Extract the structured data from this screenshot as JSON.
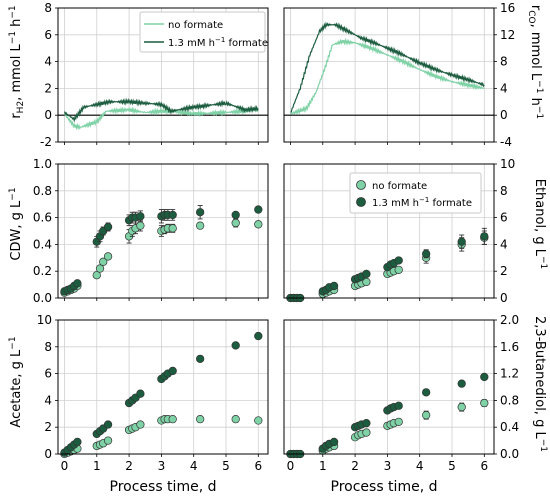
{
  "colors": {
    "no_formate": "#7fd1a6",
    "formate": "#1c5c3f",
    "grid": "#d0d0d0"
  },
  "x_axis": {
    "label": "Process time, d",
    "ticks": [
      "0",
      "1",
      "2",
      "3",
      "4",
      "5",
      "6"
    ]
  },
  "legend_top": [
    "no formate",
    "1.3 mM h⁻¹ formate"
  ],
  "legend_mid": [
    "no formate",
    "1.3 mM h⁻¹ formate"
  ],
  "chart_data": [
    {
      "type": "line",
      "panel": "rH2",
      "ylabel": "r_H2, mmol L⁻¹ h⁻¹",
      "ylim": [
        -2,
        8
      ],
      "yticks": [
        "-2",
        "0",
        "2",
        "4",
        "6",
        "8"
      ],
      "xlim": [
        -0.2,
        6.3
      ],
      "grid": true,
      "legend": "top-right",
      "series": [
        {
          "name": "no formate",
          "x": [
            0,
            0.3,
            0.5,
            1.0,
            1.3,
            2.0,
            2.5,
            3.0,
            3.3,
            4.0,
            5.0,
            6.0
          ],
          "y": [
            0.1,
            -0.8,
            -0.9,
            -0.5,
            0.3,
            0.4,
            0.2,
            0.3,
            0.3,
            0.1,
            0.2,
            0.4
          ]
        },
        {
          "name": "1.3 mM h⁻¹ formate",
          "x": [
            0,
            0.3,
            0.6,
            1.0,
            1.4,
            2.0,
            2.5,
            3.0,
            3.3,
            4.0,
            5.0,
            5.6,
            6.0
          ],
          "y": [
            0.2,
            -0.3,
            0.6,
            0.8,
            1.0,
            1.0,
            0.9,
            0.8,
            0.3,
            0.6,
            0.9,
            0.4,
            0.5
          ]
        }
      ]
    },
    {
      "type": "line",
      "panel": "rCO",
      "ylabel": "r_CO, mmol L⁻¹ h⁻¹",
      "ylim": [
        -4,
        16
      ],
      "yticks": [
        "-4",
        "0",
        "4",
        "8",
        "12",
        "16"
      ],
      "xlim": [
        -0.2,
        6.3
      ],
      "grid": true,
      "series": [
        {
          "name": "no formate",
          "x": [
            0,
            0.5,
            0.8,
            1.1,
            1.3,
            1.6,
            2.0,
            2.5,
            3.0,
            3.5,
            4.0,
            4.5,
            5.0,
            5.5,
            6.0
          ],
          "y": [
            0.2,
            1.0,
            3.5,
            7.5,
            10.5,
            11.0,
            10.8,
            10.0,
            9.0,
            8.0,
            6.8,
            5.8,
            5.0,
            4.5,
            4.0
          ]
        },
        {
          "name": "1.3 mM h⁻¹ formate",
          "x": [
            0,
            0.3,
            0.6,
            0.9,
            1.1,
            1.4,
            1.8,
            2.2,
            2.6,
            3.0,
            3.4,
            4.0,
            4.5,
            5.0,
            5.5,
            6.0
          ],
          "y": [
            0.3,
            4.0,
            9.0,
            12.5,
            13.5,
            13.5,
            12.5,
            11.5,
            10.8,
            10.0,
            9.2,
            7.8,
            6.8,
            6.0,
            5.3,
            4.5
          ]
        }
      ]
    },
    {
      "type": "scatter",
      "panel": "CDW",
      "ylabel": "CDW, g L⁻¹",
      "ylim": [
        0,
        1
      ],
      "yticks": [
        "0.0",
        "0.2",
        "0.4",
        "0.6",
        "0.8",
        "1.0"
      ],
      "xlim": [
        -0.2,
        6.3
      ],
      "grid": true,
      "series": [
        {
          "name": "no formate",
          "x": [
            0,
            0.1,
            0.2,
            0.3,
            0.4,
            1.0,
            1.1,
            1.2,
            1.35,
            2.0,
            2.1,
            2.2,
            2.35,
            3.0,
            3.1,
            3.2,
            3.35,
            4.2,
            5.3,
            6.0
          ],
          "y": [
            0.04,
            0.05,
            0.06,
            0.07,
            0.09,
            0.17,
            0.22,
            0.27,
            0.31,
            0.46,
            0.5,
            0.52,
            0.54,
            0.5,
            0.51,
            0.52,
            0.52,
            0.54,
            0.56,
            0.55
          ],
          "err": [
            0.01,
            0.01,
            0.01,
            0.01,
            0.01,
            0.02,
            0.02,
            0.02,
            0.02,
            0.05,
            0.04,
            0.04,
            0.04,
            0.04,
            0.03,
            0.03,
            0.03,
            0.02,
            0.03,
            0.02
          ]
        },
        {
          "name": "1.3 mM h⁻¹ formate",
          "x": [
            0,
            0.1,
            0.2,
            0.3,
            0.4,
            1.0,
            1.1,
            1.2,
            1.35,
            2.0,
            2.1,
            2.2,
            2.35,
            3.0,
            3.1,
            3.2,
            3.35,
            4.2,
            5.3,
            6.0
          ],
          "y": [
            0.05,
            0.06,
            0.07,
            0.09,
            0.11,
            0.42,
            0.46,
            0.5,
            0.53,
            0.58,
            0.6,
            0.6,
            0.61,
            0.61,
            0.62,
            0.62,
            0.62,
            0.64,
            0.62,
            0.66
          ],
          "err": [
            0.01,
            0.01,
            0.01,
            0.01,
            0.01,
            0.04,
            0.04,
            0.03,
            0.03,
            0.04,
            0.04,
            0.04,
            0.04,
            0.05,
            0.04,
            0.04,
            0.04,
            0.05,
            0.02,
            0.02
          ]
        }
      ]
    },
    {
      "type": "scatter",
      "panel": "Ethanol",
      "ylabel": "Ethanol, g L⁻¹",
      "ylim": [
        0,
        10
      ],
      "yticks": [
        "0",
        "2",
        "4",
        "6",
        "8",
        "10"
      ],
      "xlim": [
        -0.2,
        6.3
      ],
      "grid": true,
      "legend": "top-right",
      "series": [
        {
          "name": "no formate",
          "x": [
            0,
            0.1,
            0.2,
            0.3,
            1.0,
            1.1,
            1.2,
            1.35,
            2.0,
            2.1,
            2.2,
            2.35,
            3.0,
            3.1,
            3.2,
            3.35,
            4.2,
            5.3,
            6.0
          ],
          "y": [
            0.0,
            0.0,
            0.0,
            0.0,
            0.3,
            0.4,
            0.5,
            0.6,
            0.9,
            1.0,
            1.1,
            1.2,
            1.8,
            1.9,
            2.0,
            2.1,
            3.0,
            4.0,
            4.5
          ],
          "err": [
            0,
            0,
            0,
            0,
            0.05,
            0.05,
            0.05,
            0.05,
            0.1,
            0.1,
            0.1,
            0.1,
            0.1,
            0.1,
            0.1,
            0.1,
            0.4,
            0.5,
            0.5
          ]
        },
        {
          "name": "1.3 mM h⁻¹ formate",
          "x": [
            0,
            0.1,
            0.2,
            0.3,
            1.0,
            1.1,
            1.2,
            1.35,
            2.0,
            2.1,
            2.2,
            2.35,
            3.0,
            3.1,
            3.2,
            3.35,
            4.2,
            5.3,
            6.0
          ],
          "y": [
            0.0,
            0.0,
            0.0,
            0.0,
            0.5,
            0.6,
            0.8,
            0.9,
            1.4,
            1.5,
            1.6,
            1.8,
            2.3,
            2.5,
            2.6,
            2.8,
            3.3,
            4.2,
            4.6
          ],
          "err": [
            0,
            0,
            0,
            0,
            0.05,
            0.05,
            0.05,
            0.05,
            0.1,
            0.1,
            0.1,
            0.1,
            0.1,
            0.1,
            0.1,
            0.1,
            0.3,
            0.5,
            0.6
          ]
        }
      ]
    },
    {
      "type": "scatter",
      "panel": "Acetate",
      "ylabel": "Acetate, g L⁻¹",
      "ylim": [
        0,
        10
      ],
      "yticks": [
        "0",
        "2",
        "4",
        "6",
        "8",
        "10"
      ],
      "xlim": [
        -0.2,
        6.3
      ],
      "grid": true,
      "series": [
        {
          "name": "no formate",
          "x": [
            0,
            0.1,
            0.2,
            0.3,
            0.4,
            1.0,
            1.1,
            1.2,
            1.35,
            2.0,
            2.1,
            2.2,
            2.35,
            3.0,
            3.1,
            3.2,
            3.35,
            4.2,
            5.3,
            6.0
          ],
          "y": [
            0.0,
            0.1,
            0.2,
            0.3,
            0.4,
            0.6,
            0.7,
            0.8,
            1.0,
            1.8,
            1.9,
            2.0,
            2.2,
            2.5,
            2.6,
            2.6,
            2.6,
            2.6,
            2.6,
            2.5
          ],
          "err": [
            0,
            0,
            0,
            0,
            0,
            0.05,
            0.05,
            0.05,
            0.05,
            0.1,
            0.1,
            0.1,
            0.1,
            0.1,
            0.1,
            0.1,
            0.1,
            0.1,
            0.1,
            0.1
          ]
        },
        {
          "name": "1.3 mM h⁻¹ formate",
          "x": [
            0,
            0.1,
            0.2,
            0.3,
            0.4,
            1.0,
            1.1,
            1.2,
            1.35,
            2.0,
            2.1,
            2.2,
            2.35,
            3.0,
            3.1,
            3.2,
            3.35,
            4.2,
            5.3,
            6.0
          ],
          "y": [
            0.1,
            0.3,
            0.5,
            0.7,
            0.9,
            1.5,
            1.7,
            1.9,
            2.2,
            3.8,
            4.0,
            4.2,
            4.5,
            5.6,
            5.8,
            6.0,
            6.2,
            7.1,
            8.1,
            8.8
          ],
          "err": [
            0,
            0,
            0,
            0,
            0,
            0.05,
            0.05,
            0.05,
            0.05,
            0.1,
            0.1,
            0.1,
            0.1,
            0.2,
            0.2,
            0.2,
            0.2,
            0.1,
            0.1,
            0.1
          ]
        }
      ]
    },
    {
      "type": "scatter",
      "panel": "2,3-Butanediol",
      "ylabel": "2,3-Butanediol, g L⁻¹",
      "ylim": [
        0,
        2
      ],
      "yticks": [
        "0.0",
        "0.4",
        "0.8",
        "1.2",
        "1.6",
        "2.0"
      ],
      "xlim": [
        -0.2,
        6.3
      ],
      "grid": true,
      "series": [
        {
          "name": "no formate",
          "x": [
            0,
            0.1,
            0.2,
            0.3,
            1.0,
            1.1,
            1.2,
            1.35,
            2.0,
            2.1,
            2.2,
            2.35,
            3.0,
            3.1,
            3.2,
            3.35,
            4.2,
            5.3,
            6.0
          ],
          "y": [
            0.0,
            0.0,
            0.0,
            0.0,
            0.05,
            0.08,
            0.1,
            0.12,
            0.25,
            0.28,
            0.3,
            0.32,
            0.42,
            0.44,
            0.46,
            0.48,
            0.58,
            0.7,
            0.76
          ],
          "err": [
            0,
            0,
            0,
            0,
            0.01,
            0.01,
            0.01,
            0.01,
            0.02,
            0.02,
            0.02,
            0.02,
            0.02,
            0.02,
            0.02,
            0.02,
            0.06,
            0.06,
            0.05
          ]
        },
        {
          "name": "1.3 mM h⁻¹ formate",
          "x": [
            0,
            0.1,
            0.2,
            0.3,
            1.0,
            1.1,
            1.2,
            1.35,
            2.0,
            2.1,
            2.2,
            2.35,
            3.0,
            3.1,
            3.2,
            3.35,
            4.2,
            5.3,
            6.0
          ],
          "y": [
            0.0,
            0.0,
            0.0,
            0.0,
            0.08,
            0.12,
            0.15,
            0.18,
            0.4,
            0.42,
            0.44,
            0.46,
            0.65,
            0.68,
            0.7,
            0.72,
            0.92,
            1.05,
            1.15
          ],
          "err": [
            0,
            0,
            0,
            0,
            0.01,
            0.01,
            0.01,
            0.01,
            0.02,
            0.02,
            0.02,
            0.02,
            0.02,
            0.02,
            0.02,
            0.02,
            0.02,
            0.02,
            0.02
          ]
        }
      ]
    }
  ]
}
